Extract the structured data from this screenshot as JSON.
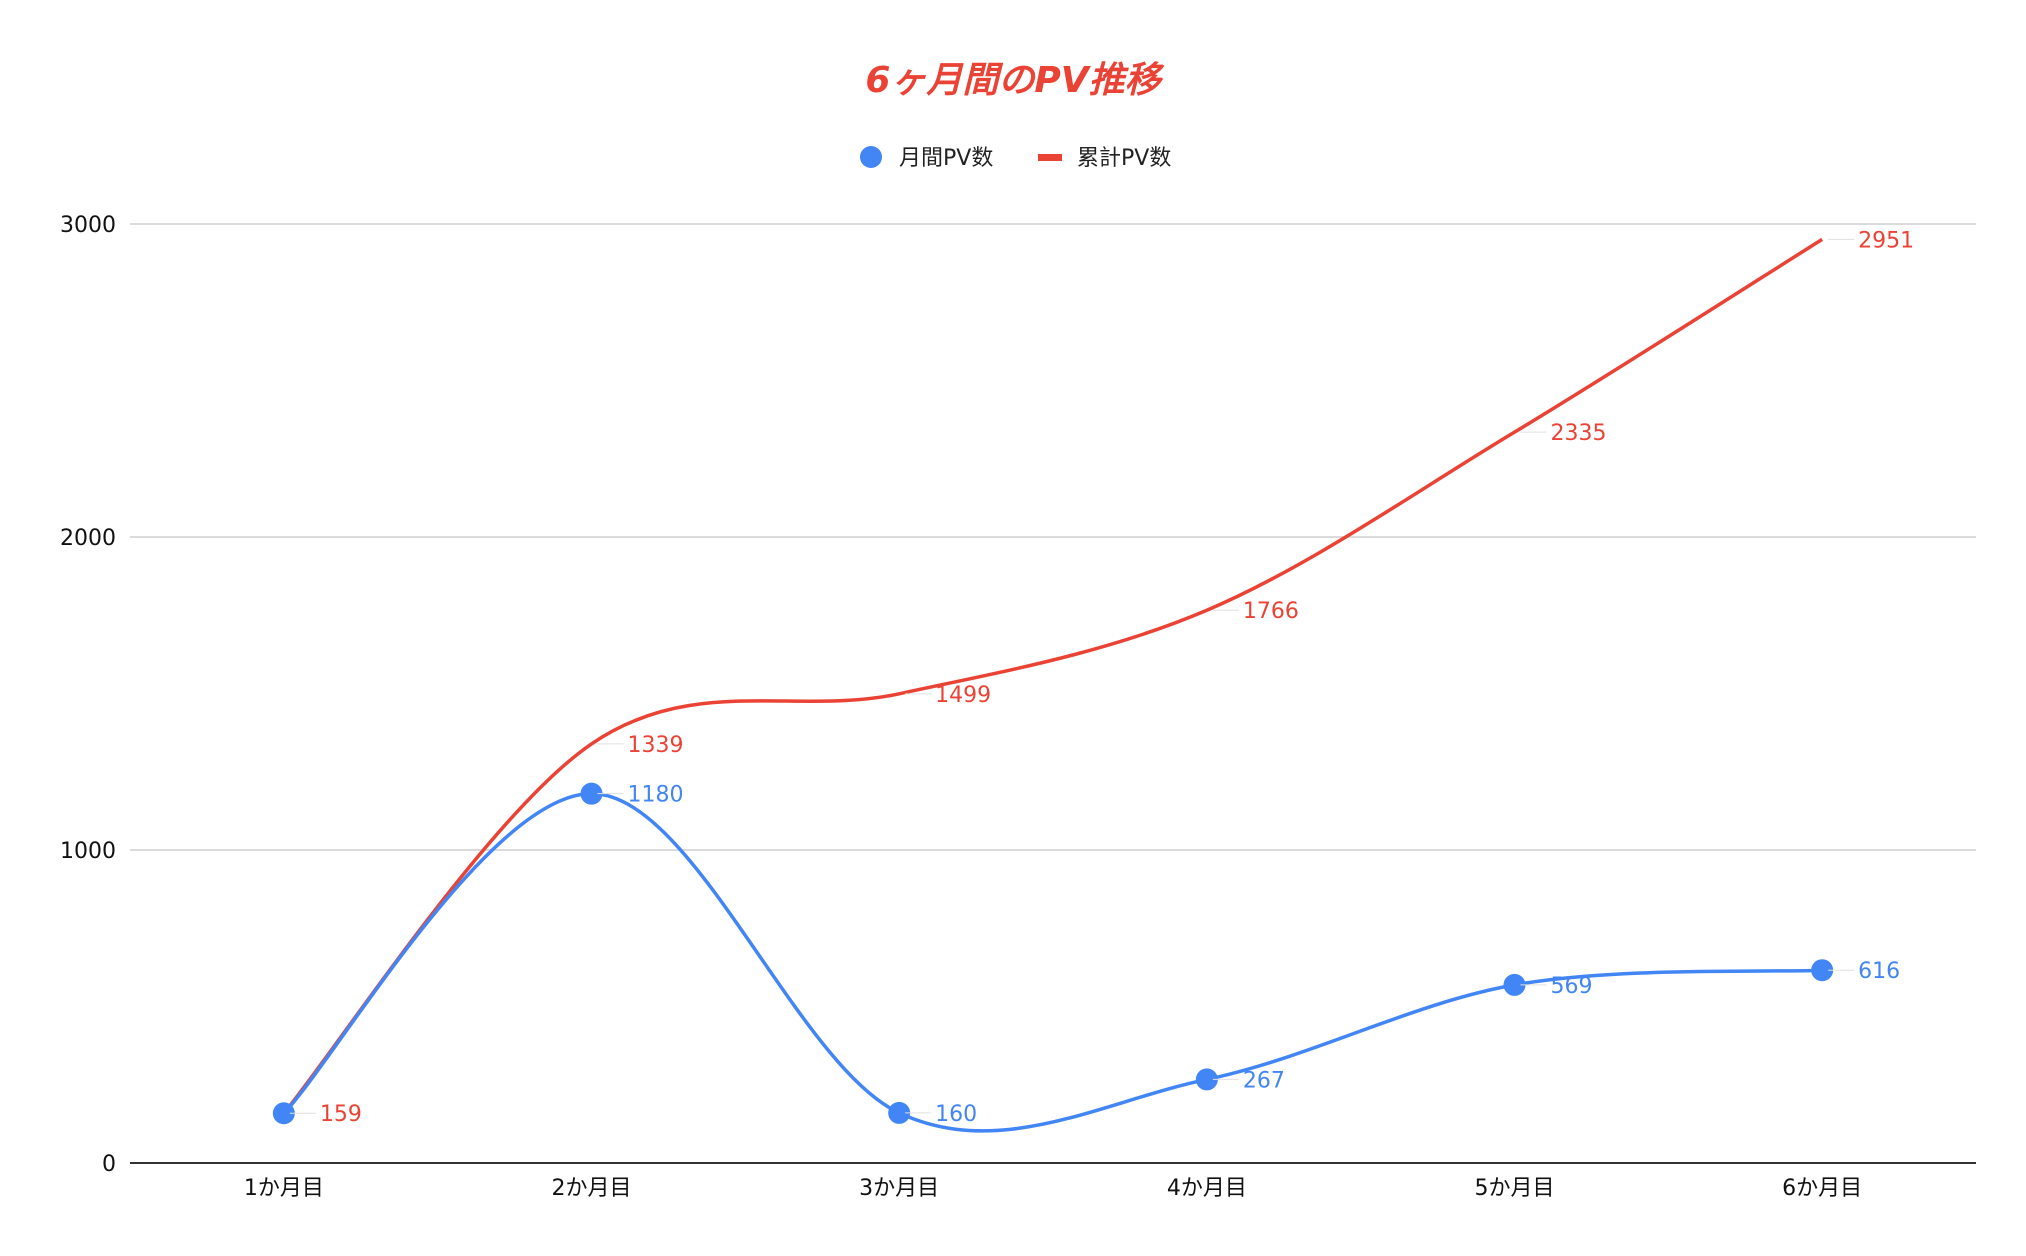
{
  "chart_data": {
    "type": "line",
    "title": "6ヶ月間のPV推移",
    "categories": [
      "1か月目",
      "2か月目",
      "3か月目",
      "4か月目",
      "5か月目",
      "6か月目"
    ],
    "series": [
      {
        "name": "月間PV数",
        "values": [
          159,
          1180,
          160,
          267,
          569,
          616
        ],
        "color": "#4285f4",
        "markers": true,
        "labels": [
          "",
          "1180",
          "160",
          "267",
          "569",
          "616"
        ]
      },
      {
        "name": "累計PV数",
        "values": [
          159,
          1339,
          1499,
          1766,
          2335,
          2951
        ],
        "color": "#ea4335",
        "markers": false,
        "labels": [
          "159",
          "1339",
          "1499",
          "1766",
          "2335",
          "2951"
        ]
      }
    ],
    "ylim": [
      0,
      3000
    ],
    "yticks": [
      0,
      1000,
      2000,
      3000
    ],
    "xlabel": "",
    "ylabel": "",
    "grid": true,
    "smooth": true,
    "legend_position": "top",
    "title_color": "#ea4335"
  }
}
